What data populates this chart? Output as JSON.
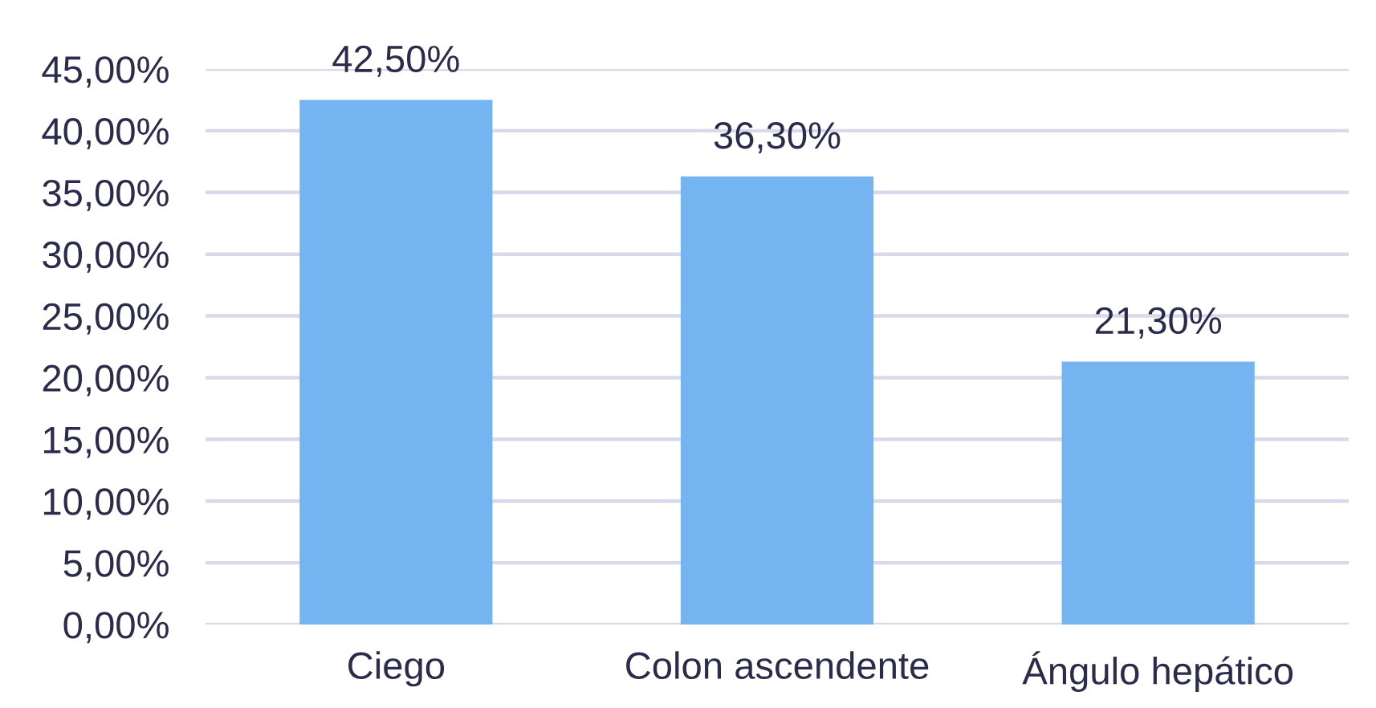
{
  "chart_data": {
    "type": "bar",
    "categories": [
      "Ciego",
      "Colon ascendente",
      "Ángulo hepático"
    ],
    "values": [
      42.5,
      36.3,
      21.3
    ],
    "color": "#74b4f0",
    "value_labels": [
      "42,50%",
      "36,30%",
      "21,30%"
    ],
    "ylim": [
      0,
      45
    ],
    "yticks": [
      {
        "value": 0,
        "label": "0,00%"
      },
      {
        "value": 5,
        "label": "5,00%"
      },
      {
        "value": 10,
        "label": "10,00%"
      },
      {
        "value": 15,
        "label": "15,00%"
      },
      {
        "value": 20,
        "label": "20,00%"
      },
      {
        "value": 25,
        "label": "25,00%"
      },
      {
        "value": 30,
        "label": "30,00%"
      },
      {
        "value": 35,
        "label": "35,00%"
      },
      {
        "value": 40,
        "label": "40,00%"
      },
      {
        "value": 45,
        "label": "45,00%"
      }
    ],
    "grid": "y"
  }
}
